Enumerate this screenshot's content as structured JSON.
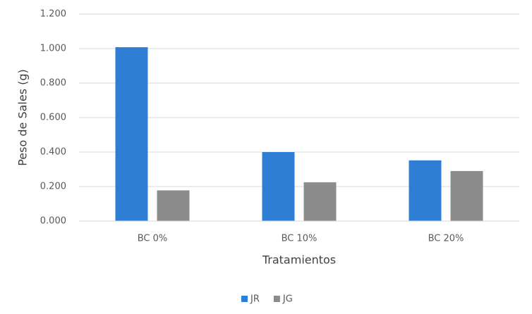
{
  "chart_data": {
    "type": "bar",
    "x_label": "Tratamientos",
    "y_label": "Peso de Sales (g)",
    "categories": [
      "BC 0%",
      "BC 10%",
      "BC 20%"
    ],
    "series": [
      {
        "name": "JR",
        "color": "#2e7fd4",
        "values": [
          1.008,
          0.4,
          0.352
        ]
      },
      {
        "name": "JG",
        "color": "#8c8c8c",
        "values": [
          0.178,
          0.225,
          0.29
        ]
      }
    ],
    "ylim": [
      0,
      1.2
    ],
    "yticks": [
      {
        "value": 0,
        "label": "0.000"
      },
      {
        "value": 0.2,
        "label": "0.200"
      },
      {
        "value": 0.4,
        "label": "0.400"
      },
      {
        "value": 0.6,
        "label": "0.600"
      },
      {
        "value": 0.8,
        "label": "0.800"
      },
      {
        "value": 1.0,
        "label": "1.000"
      },
      {
        "value": 1.2,
        "label": "1.200"
      }
    ],
    "grid": true,
    "legend": "bottom"
  }
}
